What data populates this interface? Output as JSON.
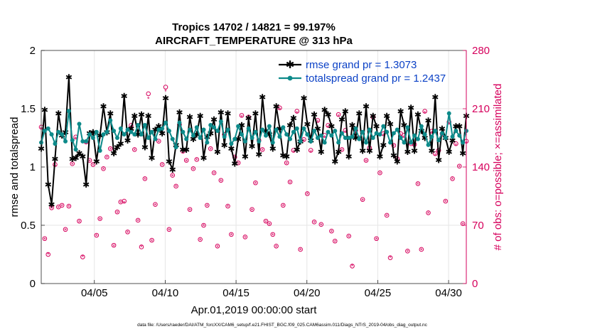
{
  "chart_data": {
    "type": "line",
    "title": "Tropics 14702 / 14821 = 99.197%",
    "subtitle": "AIRCRAFT_TEMPERATURE @ 313 hPa",
    "xlabel": "Apr.01,2019 00:00:00 start",
    "ylabel": "rmse and totalspread",
    "y2label": "# of obs: o=possible; ×=assimilated",
    "footnote": "data file: /Users/raeder/DAI/ATM_forcXX/CAM6_setup/f.e21.FHIST_BGC.f09_025.CAM6assim.011/Diags_NTrS_2019-04/obs_diag_output.nc",
    "xlim": [
      0.25,
      30.25
    ],
    "ylim": [
      0,
      2
    ],
    "y2lim": [
      0,
      280
    ],
    "xticks": [
      4,
      9,
      14,
      19,
      24,
      29
    ],
    "xtick_labels": [
      "04/05",
      "04/10",
      "04/15",
      "04/20",
      "04/25",
      "04/30"
    ],
    "yticks": [
      0,
      0.5,
      1,
      1.5,
      2
    ],
    "ytick_labels": [
      "0",
      "0.5",
      "1",
      "1.5",
      "2"
    ],
    "y2ticks": [
      0,
      70,
      140,
      210,
      280
    ],
    "y2tick_labels": [
      "0",
      "70",
      "140",
      "210",
      "280"
    ],
    "grid": true,
    "legend_position": "top-right",
    "colors": {
      "rmse": "#000000",
      "spread": "#0d8a8a",
      "obs": "#d6005c",
      "legend_text": "#0b41c6",
      "grid": "#e6e6e6"
    },
    "series": [
      {
        "name": "rmse grand pr = 1.3073",
        "values": [
          1.16,
          1.49,
          0.85,
          0.68,
          1.07,
          1.46,
          1.27,
          1.3,
          1.77,
          1.07,
          1.08,
          1.12,
          1.09,
          0.85,
          1.29,
          1.3,
          1.05,
          1.27,
          1.52,
          1.3,
          1.46,
          1.12,
          1.17,
          1.2,
          1.61,
          1.23,
          1.33,
          1.44,
          1.28,
          1.45,
          1.17,
          1.44,
          1.08,
          1.32,
          1.35,
          1.29,
          1.59,
          1.05,
          0.98,
          1.19,
          1.47,
          1.15,
          1.15,
          1.43,
          1.24,
          1.28,
          1.44,
          1.08,
          1.26,
          1.29,
          1.41,
          1.13,
          1.47,
          1.19,
          1.46,
          1.16,
          1.03,
          1.24,
          1.36,
          1.09,
          1.42,
          1.18,
          1.46,
          1.11,
          1.6,
          1.31,
          1.28,
          1.16,
          1.52,
          1.33,
          1.1,
          1.09,
          1.36,
          1.42,
          1.15,
          1.22,
          1.59,
          1.37,
          1.23,
          1.45,
          1.33,
          1.13,
          1.49,
          1.45,
          1.35,
          1.05,
          1.13,
          1.41,
          1.48,
          1.09,
          1.36,
          1.25,
          1.46,
          1.14,
          1.52,
          1.14,
          1.44,
          1.35,
          1.09,
          1.19,
          1.44,
          1.37,
          1.1,
          1.05,
          1.48,
          1.36,
          1.13,
          1.51,
          1.14,
          1.45,
          1.31,
          1.25,
          1.4,
          1.14,
          1.6,
          1.06,
          1.33,
          1.25,
          1.13,
          1.23,
          1.35,
          1.35,
          1.12,
          1.44
        ]
      },
      {
        "name": "totalspread grand pr = 1.2437",
        "values": [
          1.21,
          1.31,
          1.33,
          1.28,
          1.2,
          1.3,
          1.28,
          1.22,
          1.48,
          1.23,
          1.15,
          1.37,
          1.22,
          1.22,
          1.28,
          1.25,
          1.3,
          1.14,
          1.28,
          1.3,
          1.4,
          1.31,
          1.25,
          1.33,
          1.28,
          1.32,
          1.3,
          1.28,
          1.36,
          1.28,
          1.36,
          1.25,
          1.3,
          1.24,
          1.32,
          1.33,
          1.38,
          1.31,
          1.24,
          1.17,
          1.38,
          1.3,
          1.24,
          1.32,
          1.27,
          1.34,
          1.25,
          1.32,
          1.21,
          1.36,
          1.34,
          1.31,
          1.39,
          1.26,
          1.32,
          1.2,
          1.24,
          1.35,
          1.28,
          1.22,
          1.33,
          1.25,
          1.3,
          1.22,
          1.32,
          1.27,
          1.35,
          1.21,
          1.32,
          1.26,
          1.34,
          1.28,
          1.24,
          1.3,
          1.33,
          1.22,
          1.33,
          1.28,
          1.22,
          1.31,
          1.25,
          1.27,
          1.21,
          1.3,
          1.27,
          1.31,
          1.21,
          1.29,
          1.25,
          1.25,
          1.26,
          1.33,
          1.24,
          1.3,
          1.21,
          1.32,
          1.25,
          1.29,
          1.28,
          1.35,
          1.3,
          1.21,
          1.29,
          1.32,
          1.25,
          1.21,
          1.34,
          1.21,
          1.27,
          1.24,
          1.35,
          1.28,
          1.19,
          1.26,
          1.31,
          1.23,
          1.29,
          1.25,
          1.46,
          1.26,
          1.31,
          1.27,
          1.21,
          1.31
        ]
      }
    ],
    "obs_possible": [
      188,
      54,
      35,
      91,
      143,
      92,
      94,
      65,
      93,
      144,
      176,
      75,
      32,
      170,
      148,
      143,
      58,
      78,
      138,
      152,
      162,
      46,
      86,
      98,
      99,
      62,
      190,
      161,
      76,
      44,
      126,
      228,
      52,
      95,
      171,
      143,
      236,
      65,
      130,
      117,
      191,
      159,
      148,
      89,
      138,
      149,
      53,
      70,
      94,
      162,
      133,
      45,
      124,
      179,
      93,
      59,
      152,
      145,
      202,
      56,
      200,
      89,
      121,
      172,
      161,
      75,
      72,
      59,
      45,
      211,
      94,
      145,
      122,
      160,
      207,
      41,
      173,
      108,
      160,
      74,
      196,
      71,
      178,
      190,
      63,
      51,
      203,
      161,
      184,
      57,
      21,
      184,
      175,
      101,
      148,
      163,
      200,
      54,
      133,
      180,
      82,
      31,
      166,
      150,
      180,
      178,
      39,
      168,
      167,
      120,
      41,
      207,
      85,
      183,
      156,
      160,
      180,
      99,
      194,
      126,
      168,
      141,
      72,
      171
    ],
    "obs_assimilated": [
      186,
      53,
      35,
      90,
      141,
      91,
      93,
      64,
      92,
      143,
      174,
      74,
      32,
      169,
      147,
      142,
      57,
      77,
      137,
      151,
      161,
      45,
      85,
      97,
      97,
      61,
      188,
      160,
      75,
      44,
      125,
      222,
      51,
      94,
      170,
      142,
      231,
      64,
      129,
      116,
      189,
      158,
      147,
      88,
      137,
      148,
      52,
      69,
      93,
      161,
      132,
      44,
      123,
      177,
      92,
      58,
      151,
      144,
      200,
      55,
      198,
      88,
      120,
      170,
      160,
      74,
      71,
      58,
      44,
      209,
      93,
      144,
      121,
      158,
      205,
      40,
      171,
      107,
      158,
      73,
      194,
      70,
      176,
      188,
      62,
      50,
      201,
      160,
      182,
      56,
      21,
      182,
      173,
      100,
      147,
      161,
      198,
      53,
      132,
      178,
      81,
      31,
      165,
      149,
      178,
      176,
      38,
      167,
      165,
      119,
      40,
      205,
      84,
      181,
      154,
      158,
      178,
      98,
      192,
      125,
      166,
      140,
      71,
      169
    ]
  }
}
